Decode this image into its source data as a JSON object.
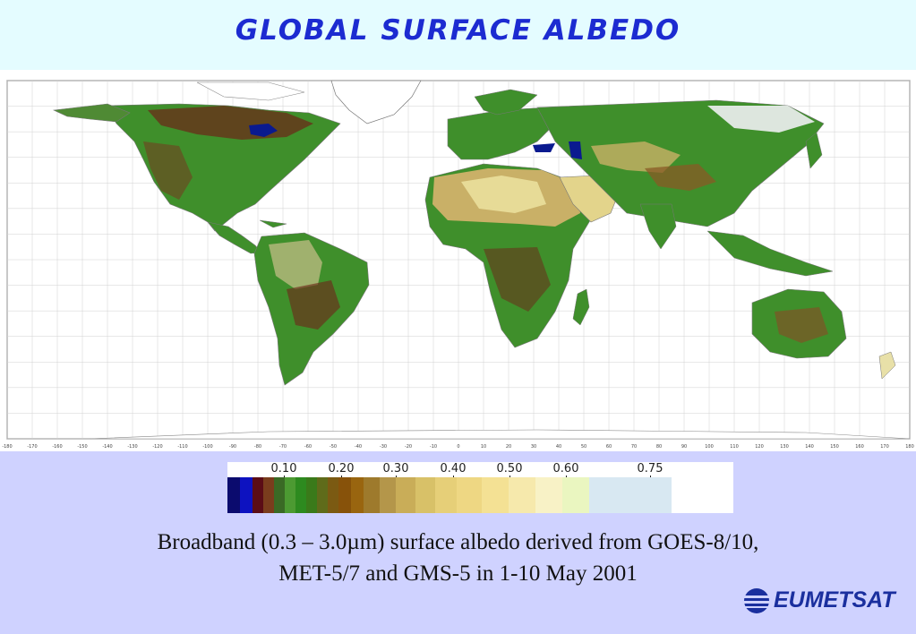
{
  "title": "GLOBAL SURFACE ALBEDO",
  "map": {
    "lon_ticks": [
      "-180",
      "-170",
      "-160",
      "-150",
      "-140",
      "-130",
      "-120",
      "-110",
      "-100",
      "-90",
      "-80",
      "-70",
      "-60",
      "-50",
      "-40",
      "-30",
      "-20",
      "-10",
      "0",
      "10",
      "20",
      "30",
      "40",
      "50",
      "60",
      "70",
      "80",
      "90",
      "100",
      "110",
      "120",
      "130",
      "140",
      "150",
      "160",
      "170",
      "180"
    ],
    "colors": {
      "ocean": "#ffffff",
      "coast": "#777777",
      "grid": "#d0d0d0",
      "vegetation": "#3f8f2b",
      "dense_vegetation": "#2c6d1e",
      "brown": "#6b2b1a",
      "desert": "#c9b067",
      "bright_desert": "#ece3a0",
      "ice": "#eef0f2",
      "water": "#0a1a8f"
    }
  },
  "legend": {
    "tick_labels": [
      "0.10",
      "0.20",
      "0.30",
      "0.40",
      "0.50",
      "0.60",
      "0.75"
    ],
    "colors": [
      "#0b0b6e",
      "#0d12c0",
      "#5b0d16",
      "#7a3d1d",
      "#3a6a25",
      "#4c9a32",
      "#2d8a1f",
      "#3a7a1a",
      "#5f6b1a",
      "#7b5a12",
      "#87520a",
      "#99650f",
      "#9e7a2c",
      "#b4964a",
      "#c9ad58",
      "#d8c168",
      "#e6cf78",
      "#eed783",
      "#f4e194",
      "#f6e9ac",
      "#f8f2c6",
      "#eaf6c0",
      "#d8e8f2"
    ],
    "widths": [
      14,
      14,
      12,
      12,
      12,
      12,
      12,
      12,
      12,
      12,
      14,
      14,
      18,
      18,
      22,
      22,
      24,
      28,
      30,
      30,
      30,
      30,
      92
    ]
  },
  "caption": {
    "line1": "Broadband (0.3 – 3.0µm) surface albedo derived from GOES-8/10,",
    "line2": "MET-5/7 and GMS-5 in 1-10 May 2001"
  },
  "logo": {
    "text": "EUMETSAT",
    "icon": "eumetsat-globe-icon"
  }
}
